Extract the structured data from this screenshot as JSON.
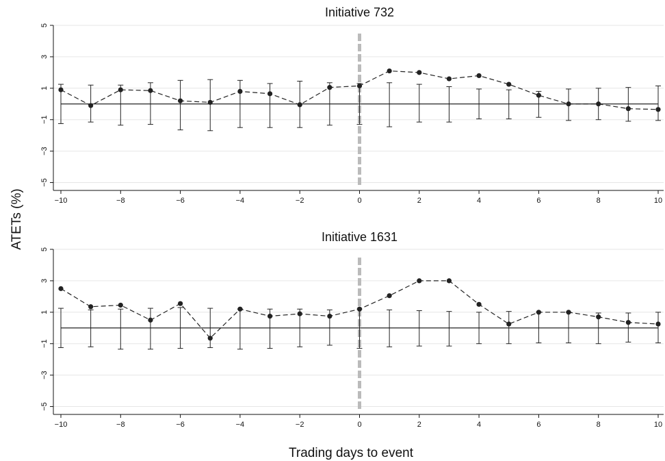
{
  "ylabel": "ATETs (%)",
  "xlabel": "Trading days to event",
  "chart_data": [
    {
      "type": "line",
      "title": "Initiative 732",
      "x": [
        -10,
        -9,
        -8,
        -7,
        -6,
        -5,
        -4,
        -3,
        -2,
        -1,
        0,
        1,
        2,
        3,
        4,
        5,
        6,
        7,
        8,
        9,
        10
      ],
      "series": [
        {
          "values": [
            0.9,
            -0.1,
            0.9,
            0.85,
            0.2,
            0.1,
            0.8,
            0.65,
            -0.05,
            1.05,
            1.15,
            2.1,
            2.0,
            1.6,
            1.8,
            1.25,
            0.55,
            0.0,
            0.0,
            -0.3,
            -0.35
          ]
        }
      ],
      "ci_lower": [
        -1.25,
        -1.15,
        -1.35,
        -1.3,
        -1.65,
        -1.7,
        -1.5,
        -1.5,
        -1.5,
        -1.35,
        -1.3,
        -1.45,
        -1.15,
        -1.15,
        -0.95,
        -0.95,
        -0.85,
        -1.05,
        -1.0,
        -1.1,
        -1.05
      ],
      "ci_upper": [
        1.25,
        1.2,
        1.2,
        1.35,
        1.5,
        1.55,
        1.5,
        1.3,
        1.45,
        1.35,
        1.3,
        1.35,
        1.25,
        1.1,
        0.95,
        0.9,
        0.8,
        0.95,
        1.0,
        1.05,
        1.15
      ],
      "reference_line_y": 0,
      "event_line_x": 0,
      "xlim": [
        -10,
        10
      ],
      "ylim": [
        -5.5,
        5
      ],
      "xticks": [
        -10,
        -8,
        -6,
        -4,
        -2,
        0,
        2,
        4,
        6,
        8,
        10
      ],
      "yticks": [
        -5,
        -3,
        -1,
        1,
        3,
        5
      ],
      "grid": true,
      "colors": {
        "line": "#222222",
        "event_line": "#bbbbbb",
        "grid": "#e6e6e6"
      }
    },
    {
      "type": "line",
      "title": "Initiative 1631",
      "x": [
        -10,
        -9,
        -8,
        -7,
        -6,
        -5,
        -4,
        -3,
        -2,
        -1,
        0,
        1,
        2,
        3,
        4,
        5,
        6,
        7,
        8,
        9,
        10
      ],
      "series": [
        {
          "values": [
            2.5,
            1.35,
            1.45,
            0.5,
            1.55,
            -0.65,
            1.2,
            0.75,
            0.9,
            0.75,
            1.2,
            2.05,
            3.0,
            3.0,
            1.5,
            0.25,
            1.0,
            1.0,
            0.7,
            0.35,
            0.25
          ]
        }
      ],
      "ci_lower": [
        -1.25,
        -1.2,
        -1.35,
        -1.35,
        -1.3,
        -1.25,
        -1.35,
        -1.3,
        -1.2,
        -1.1,
        -1.3,
        -1.2,
        -1.15,
        -1.15,
        -1.0,
        -1.0,
        -0.95,
        -0.95,
        -1.0,
        -0.9,
        -0.95
      ],
      "ci_upper": [
        1.25,
        1.15,
        1.2,
        1.25,
        1.3,
        1.25,
        1.2,
        1.2,
        1.2,
        1.15,
        1.2,
        1.15,
        1.1,
        1.05,
        1.0,
        1.05,
        1.0,
        1.0,
        0.95,
        0.95,
        1.0
      ],
      "reference_line_y": 0,
      "event_line_x": 0,
      "xlim": [
        -10,
        10
      ],
      "ylim": [
        -5.5,
        5
      ],
      "xticks": [
        -10,
        -8,
        -6,
        -4,
        -2,
        0,
        2,
        4,
        6,
        8,
        10
      ],
      "yticks": [
        -5,
        -3,
        -1,
        1,
        3,
        5
      ],
      "grid": true,
      "colors": {
        "line": "#222222",
        "event_line": "#bbbbbb",
        "grid": "#e6e6e6"
      }
    }
  ]
}
